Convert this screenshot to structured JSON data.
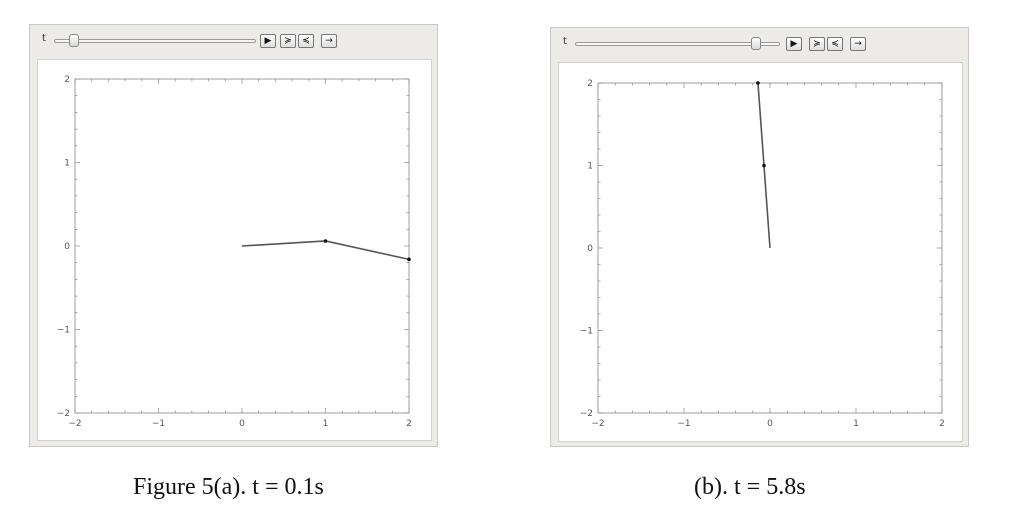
{
  "panels": [
    {
      "id": "a",
      "control_label": "t",
      "t_fraction": 0.08,
      "buttons": [
        {
          "name": "play-icon",
          "glyph": "▶"
        },
        {
          "name": "faster-icon",
          "glyph": "≽"
        },
        {
          "name": "slower-icon",
          "glyph": "≼"
        },
        {
          "name": "direction-icon",
          "glyph": "→"
        }
      ],
      "plot": {
        "xlim": [
          -2,
          2
        ],
        "ylim": [
          -2,
          2
        ],
        "x_tick_labels": [
          "−2",
          "−1",
          "0",
          "1",
          "2"
        ],
        "y_tick_labels": [
          "2",
          "1",
          "0",
          "−1",
          "−2"
        ],
        "line_color": "#555555",
        "points": [
          [
            0,
            0
          ],
          [
            1,
            0.06
          ],
          [
            2,
            -0.16
          ]
        ]
      }
    },
    {
      "id": "b",
      "control_label": "t",
      "t_fraction": 0.9,
      "buttons": [
        {
          "name": "play-icon",
          "glyph": "▶"
        },
        {
          "name": "faster-icon",
          "glyph": "≽"
        },
        {
          "name": "slower-icon",
          "glyph": "≼"
        },
        {
          "name": "direction-icon",
          "glyph": "→"
        }
      ],
      "plot": {
        "xlim": [
          -2,
          2
        ],
        "ylim": [
          -2,
          2
        ],
        "x_tick_labels": [
          "−2",
          "−1",
          "0",
          "1",
          "2"
        ],
        "y_tick_labels": [
          "2",
          "1",
          "0",
          "−1",
          "−2"
        ],
        "line_color": "#555555",
        "points": [
          [
            0,
            0
          ],
          [
            -0.07,
            1.0
          ],
          [
            -0.14,
            2.0
          ]
        ]
      }
    }
  ],
  "captions": {
    "a": "Figure 5(a). t = 0.1s",
    "b": "(b). t = 5.8s"
  }
}
